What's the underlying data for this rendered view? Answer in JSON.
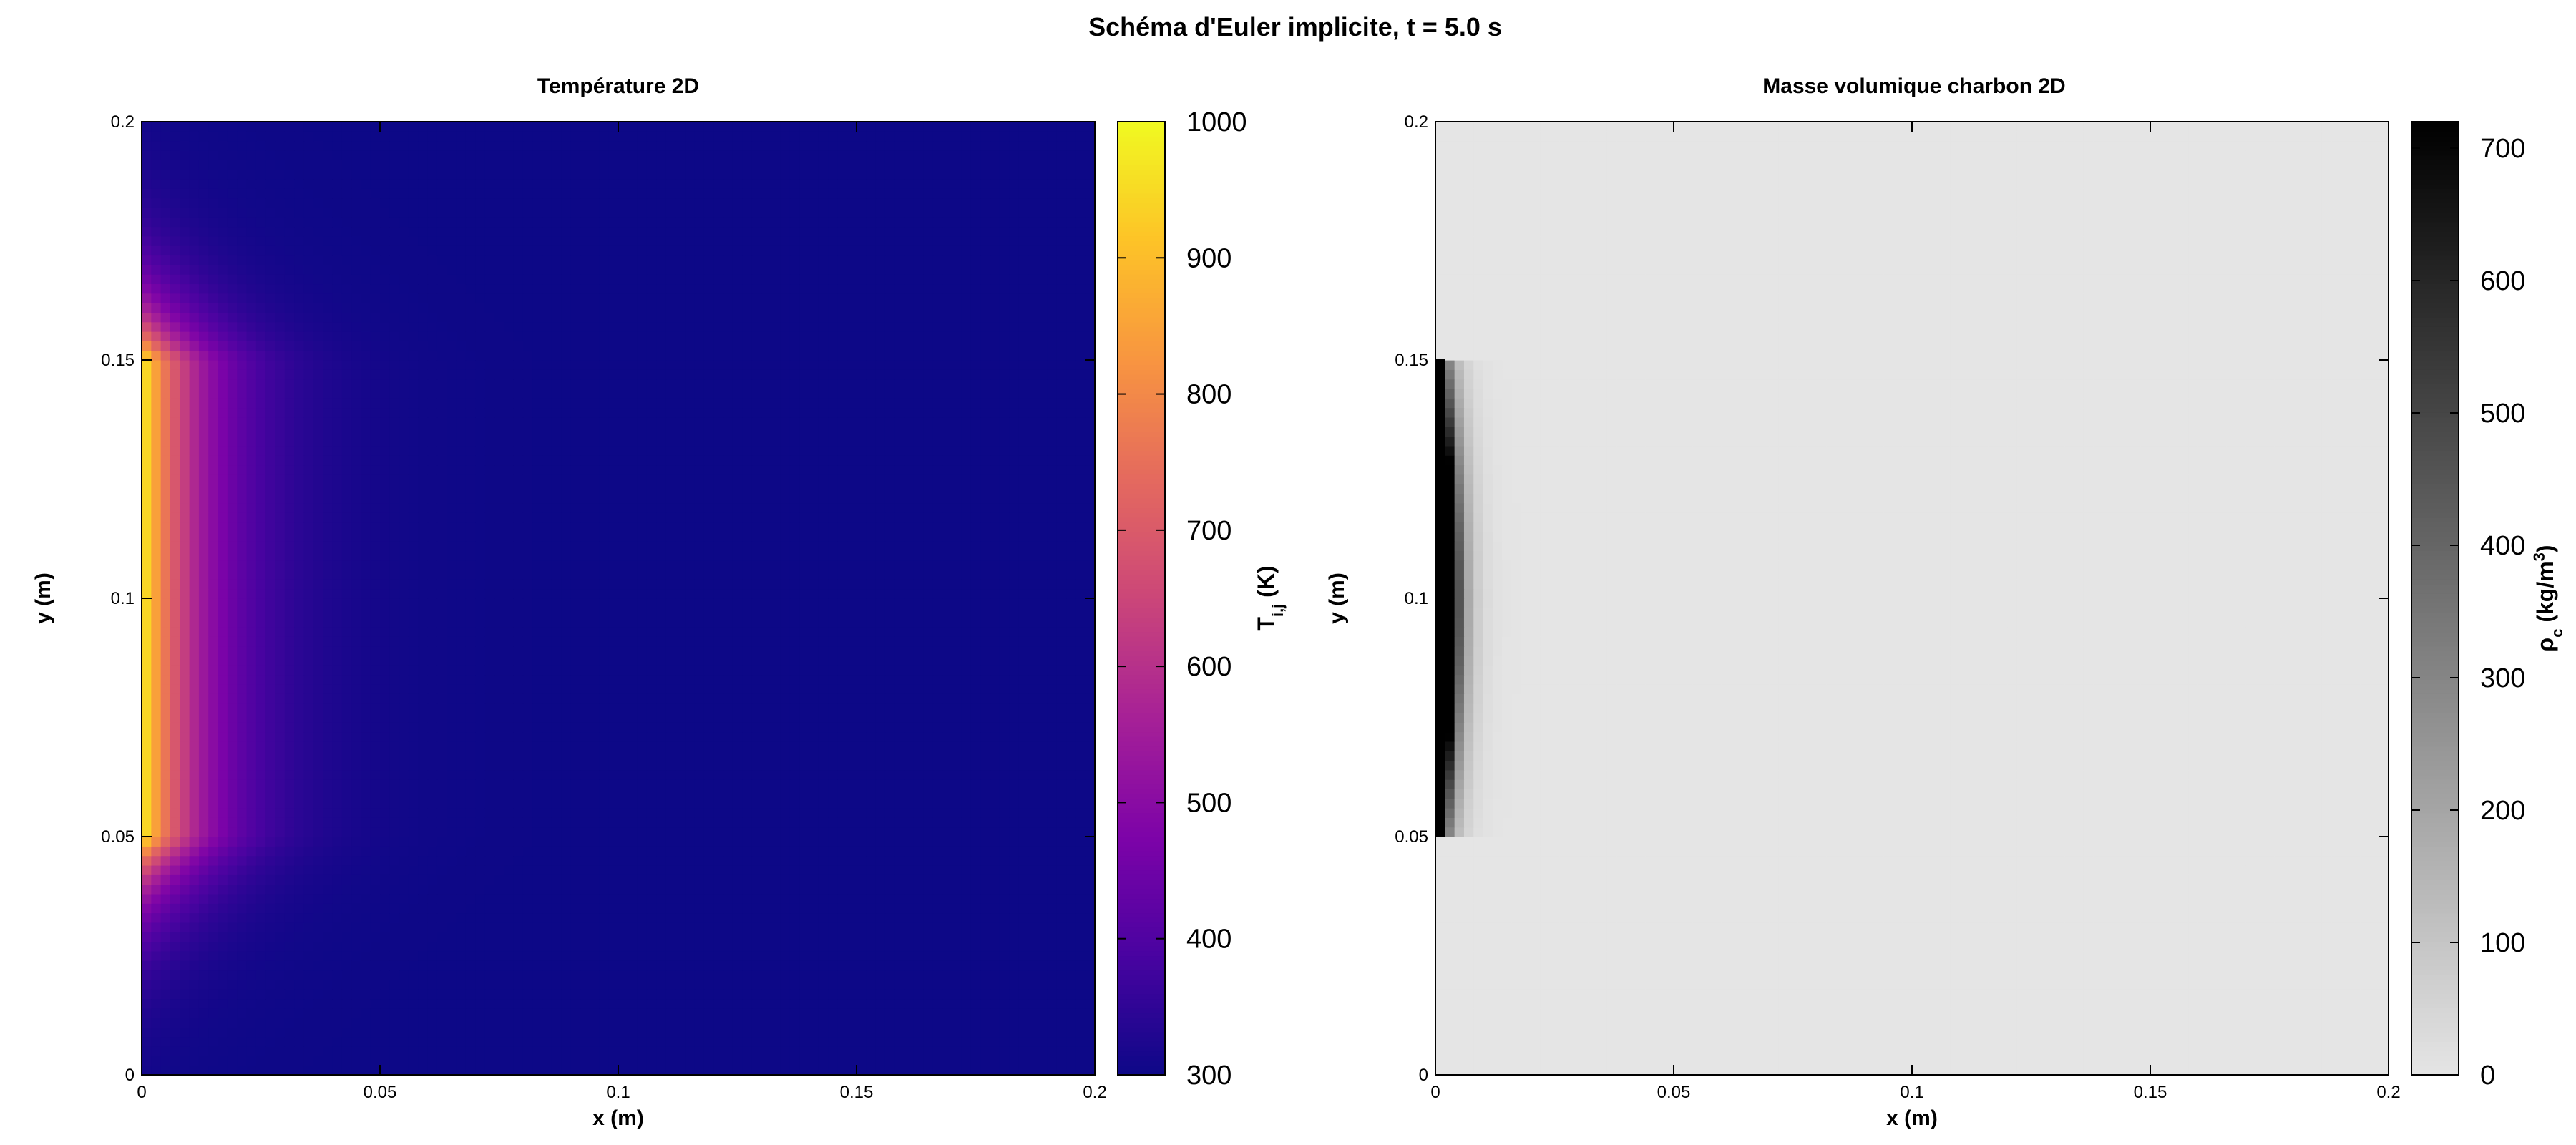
{
  "figure": {
    "title": "Schéma d'Euler implicite, t = 5.0 s"
  },
  "chart_data": [
    {
      "type": "heatmap",
      "title": "Température 2D",
      "xlabel": "x (m)",
      "ylabel": "y (m)",
      "xlim": [
        0,
        0.2
      ],
      "ylim": [
        0,
        0.2
      ],
      "xticks": [
        "0",
        "0.05",
        "0.1",
        "0.15",
        "0.2"
      ],
      "yticks": [
        "0",
        "0.05",
        "0.1",
        "0.15",
        "0.2"
      ],
      "colormap": "plasma",
      "colorbar": {
        "label_main": "T",
        "label_sub": "i,j",
        "label_unit": " (K)",
        "range": [
          300,
          1000
        ],
        "ticks": [
          "300",
          "400",
          "500",
          "600",
          "700",
          "800",
          "900",
          "1000"
        ]
      },
      "grid_size": [
        100,
        100
      ],
      "field": {
        "background": 300,
        "peak": 1000,
        "source_boundary": "x = 0",
        "source_y_range": [
          0.05,
          0.15
        ],
        "decay_length_x": 0.012,
        "decay_length_y": 0.012
      }
    },
    {
      "type": "heatmap",
      "title": "Masse volumique charbon 2D",
      "xlabel": "x (m)",
      "ylabel": "y (m)",
      "xlim": [
        0,
        0.2
      ],
      "ylim": [
        0,
        0.2
      ],
      "xticks": [
        "0",
        "0.05",
        "0.1",
        "0.15",
        "0.2"
      ],
      "yticks": [
        "0",
        "0.05",
        "0.1",
        "0.15",
        "0.2"
      ],
      "colormap": "gray_reversed",
      "colorbar": {
        "label_main": "ρ",
        "label_sub": "c",
        "label_unit": " (kg/m",
        "label_sup": "3",
        "label_end": ")",
        "range": [
          0,
          720
        ],
        "ticks": [
          "0",
          "100",
          "200",
          "300",
          "400",
          "500",
          "600",
          "700"
        ]
      },
      "grid_size": [
        100,
        100
      ],
      "field": {
        "background": 0,
        "peak": 720,
        "source_boundary": "x = 0",
        "source_y_range": [
          0.05,
          0.15
        ],
        "char_depth_center": 0.004,
        "char_depth_edge": 0.001
      }
    }
  ]
}
